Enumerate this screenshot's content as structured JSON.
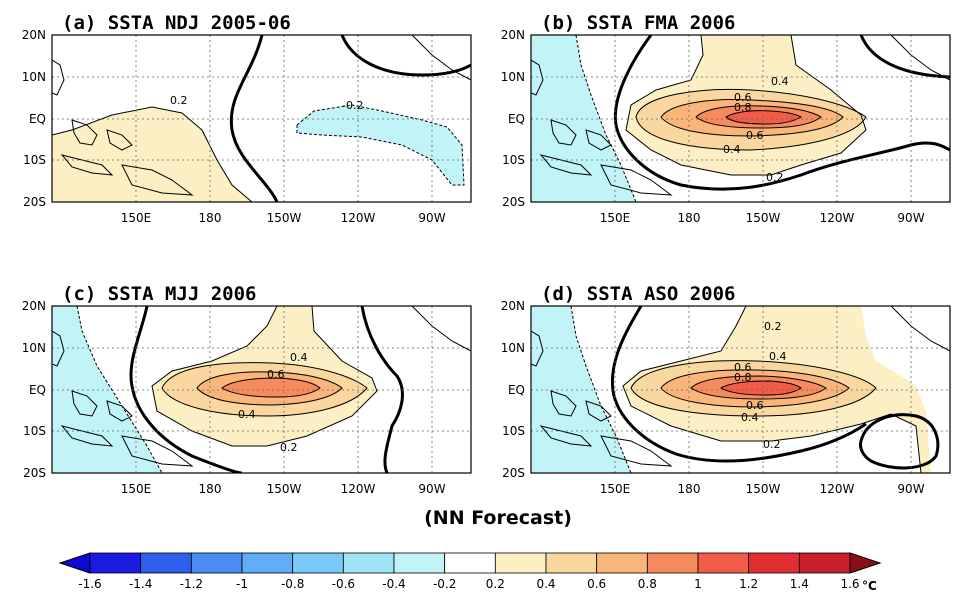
{
  "chart_data": {
    "type": "heatmap",
    "variable": "SSTA",
    "unit": "°C",
    "footer": "(NN Forecast)",
    "lon_ticks": [
      "150E",
      "180",
      "150W",
      "120W",
      "90W"
    ],
    "lat_ticks": [
      "20N",
      "10N",
      "EQ",
      "10S",
      "20S"
    ],
    "grid": true,
    "legend": "bottom",
    "colorbar": {
      "ticks": [
        "-1.6",
        "-1.4",
        "-1.2",
        "-1",
        "-0.8",
        "-0.6",
        "-0.4",
        "-0.2",
        "0.2",
        "0.4",
        "0.6",
        "0.8",
        "1",
        "1.2",
        "1.4",
        "1.6"
      ],
      "colors": [
        "#1a1ae0",
        "#2f5fef",
        "#4a8cf4",
        "#5fadf6",
        "#78caf8",
        "#9ee3f6",
        "#c1f4f6",
        "#ffffff",
        "#fbefc3",
        "#fad79e",
        "#f9b57a",
        "#f68a5c",
        "#f25b47",
        "#e02e33",
        "#c81e2b"
      ]
    },
    "panels": [
      {
        "title": "(a) SSTA NDJ 2005-06",
        "warm_core": null,
        "contour_labels": [
          "0.2",
          "-0.2"
        ]
      },
      {
        "title": "(b) SSTA FMA 2006",
        "warm_core": {
          "lon": 215,
          "lat": 0,
          "max": 1.0
        },
        "contour_labels": [
          "0.4",
          "0.6",
          "0.8",
          "0.6",
          "0.4",
          "0.2"
        ]
      },
      {
        "title": "(c) SSTA MJJ 2006",
        "warm_core": {
          "lon": 215,
          "lat": 0,
          "max": 0.8
        },
        "contour_labels": [
          "0.4",
          "0.6",
          "0.4",
          "0.2"
        ]
      },
      {
        "title": "(d) SSTA ASO 2006",
        "warm_core": {
          "lon": 215,
          "lat": 0,
          "max": 1.0
        },
        "contour_labels": [
          "0.2",
          "0.6",
          "0.8",
          "0.4",
          "0.6",
          "0.4",
          "0.2"
        ]
      }
    ]
  }
}
